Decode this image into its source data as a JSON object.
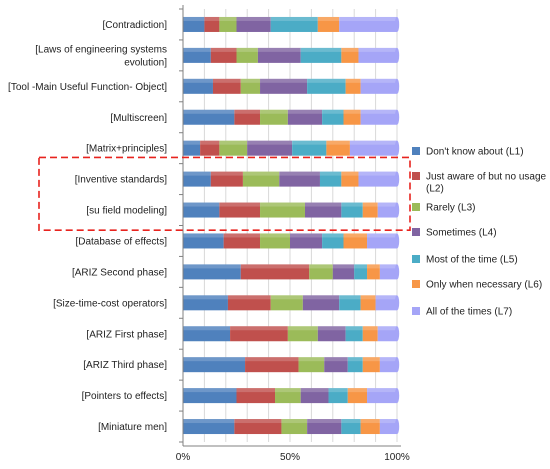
{
  "chart_data": {
    "type": "bar",
    "orientation": "horizontal",
    "stacked": true,
    "percent": true,
    "categories": [
      "[Contradiction]",
      "[Laws of engineering systems evolution]",
      "[Tool -Main Useful Function- Object]",
      "[Multiscreen]",
      "[Matrix+principles]",
      "[Inventive standards]",
      "[su field modeling]",
      "[Database of effects]",
      "[ARIZ Second phase]",
      "[Size-time-cost operators]",
      "[ARIZ First phase]",
      "[ARIZ Third phase]",
      "[Pointers to effects]",
      "[Miniature men]"
    ],
    "category_display_lines": [
      [
        "[Contradiction]"
      ],
      [
        "[Laws of engineering systems",
        "evolution]"
      ],
      [
        "[Tool -Main Useful Function- Object]"
      ],
      [
        "[Multiscreen]"
      ],
      [
        "[Matrix+principles]"
      ],
      [
        "[Inventive standards]"
      ],
      [
        "[su field modeling]"
      ],
      [
        "[Database of effects]"
      ],
      [
        "[ARIZ Second phase]"
      ],
      [
        "[Size-time-cost operators]"
      ],
      [
        "[ARIZ First phase]"
      ],
      [
        "[ARIZ Third phase]"
      ],
      [
        "[Pointers to effects]"
      ],
      [
        "[Miniature men]"
      ]
    ],
    "series": [
      {
        "name": "Don't know about (L1)",
        "color": "#4F81BD",
        "values": [
          10,
          13,
          14,
          24,
          8,
          13,
          17,
          19,
          27,
          21,
          22,
          29,
          25,
          24
        ]
      },
      {
        "name": "Just aware of but no usage (L2)",
        "color": "#C0504D",
        "values": [
          7,
          12,
          13,
          12,
          9,
          15,
          19,
          17,
          32,
          20,
          27,
          25,
          18,
          22
        ]
      },
      {
        "name": "Rarely (L3)",
        "color": "#9BBB59",
        "values": [
          8,
          10,
          9,
          13,
          13,
          17,
          21,
          14,
          11,
          15,
          14,
          12,
          12,
          12
        ]
      },
      {
        "name": "Sometimes (L4)",
        "color": "#8064A2",
        "values": [
          16,
          20,
          22,
          16,
          21,
          19,
          17,
          15,
          10,
          17,
          13,
          11,
          13,
          16
        ]
      },
      {
        "name": "Most of the time (L5)",
        "color": "#4BACC6",
        "values": [
          22,
          19,
          18,
          10,
          16,
          10,
          10,
          10,
          6,
          10,
          8,
          7,
          9,
          9
        ]
      },
      {
        "name": "Only when necessary (L6)",
        "color": "#F79646",
        "values": [
          10,
          8,
          7,
          8,
          11,
          8,
          7,
          11,
          6,
          7,
          7,
          8,
          9,
          9
        ]
      },
      {
        "name": "All of the times (L7)",
        "color": "#A5A5F7",
        "values": [
          27,
          18,
          17,
          17,
          22,
          18,
          9,
          14,
          8,
          10,
          9,
          8,
          14,
          8
        ]
      }
    ],
    "legend_display_lines": [
      [
        "Don't know about (L1)"
      ],
      [
        "Just aware of but no usage",
        "(L2)"
      ],
      [
        "Rarely (L3)"
      ],
      [
        "Sometimes (L4)"
      ],
      [
        "Most of the time (L5)"
      ],
      [
        "Only when necessary (L6)"
      ],
      [
        "All of the times (L7)"
      ]
    ],
    "x_ticks": [
      "0%",
      "50%",
      "100%"
    ],
    "xlim": [
      0,
      100
    ],
    "grid": true,
    "legend_position": "right",
    "highlight": {
      "style": "dashed",
      "color": "#E8231E",
      "categories": [
        "[Inventive standards]",
        "[su field modeling]"
      ]
    }
  }
}
